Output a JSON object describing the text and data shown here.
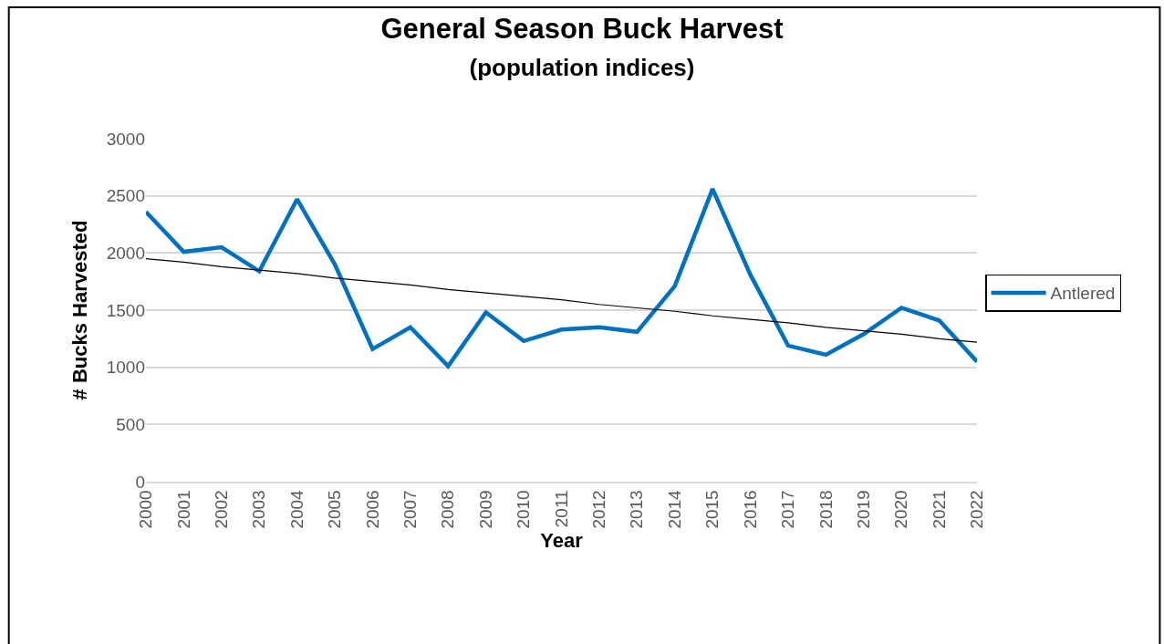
{
  "chart_data": {
    "type": "line",
    "title": "General Season Buck Harvest",
    "subtitle": "(population indices)",
    "xlabel": "Year",
    "ylabel": "# Bucks Harvested",
    "categories": [
      "2000",
      "2001",
      "2002",
      "2003",
      "2004",
      "2005",
      "2006",
      "2007",
      "2008",
      "2009",
      "2010",
      "2011",
      "2012",
      "2013",
      "2014",
      "2015",
      "2016",
      "2017",
      "2018",
      "2019",
      "2020",
      "2021",
      "2022"
    ],
    "series": [
      {
        "name": "Antlered",
        "color": "#0070c0",
        "values": [
          2360,
          2010,
          2050,
          1840,
          2470,
          1900,
          1160,
          1350,
          1010,
          1480,
          1230,
          1330,
          1350,
          1310,
          1710,
          2560,
          1810,
          1190,
          1110,
          1290,
          1520,
          1410,
          1050
        ]
      },
      {
        "type": "line",
        "color": "#000000",
        "values": [
          1950,
          1920,
          1880,
          1850,
          1820,
          1780,
          1750,
          1720,
          1680,
          1650,
          1620,
          1590,
          1550,
          1520,
          1490,
          1450,
          1420,
          1390,
          1350,
          1320,
          1290,
          1250,
          1220
        ]
      }
    ],
    "ylim": [
      0,
      3000
    ],
    "yticks": [
      0,
      500,
      1000,
      1500,
      2000,
      2500,
      3000
    ],
    "grid": "y",
    "legend": "right",
    "marker": "none",
    "line_style": "solid"
  }
}
